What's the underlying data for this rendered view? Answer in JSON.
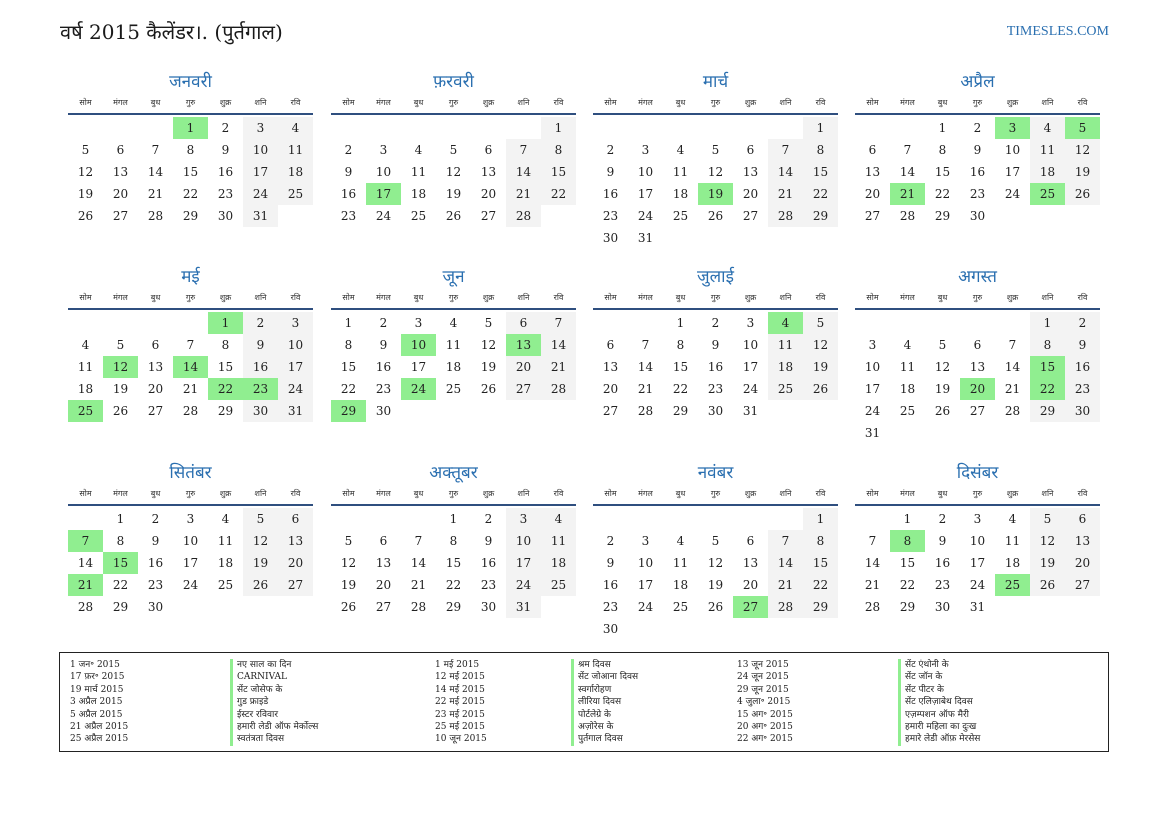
{
  "header": {
    "title": "वर्ष 2015 कैलेंडर।. (पुर्तगाल)",
    "site": "TIMESLES.COM"
  },
  "weekdays": [
    "सोम",
    "मंगल",
    "बुध",
    "गुरु",
    "शुक्र",
    "शनि",
    "रवि"
  ],
  "months": [
    {
      "name": "जनवरी",
      "offset": 3,
      "days": 31,
      "highlights": [
        1
      ]
    },
    {
      "name": "फ़रवरी",
      "offset": 6,
      "days": 28,
      "highlights": [
        17
      ]
    },
    {
      "name": "मार्च",
      "offset": 6,
      "days": 31,
      "highlights": [
        19
      ]
    },
    {
      "name": "अप्रैल",
      "offset": 2,
      "days": 30,
      "highlights": [
        3,
        5,
        21,
        25
      ]
    },
    {
      "name": "मई",
      "offset": 4,
      "days": 31,
      "highlights": [
        1,
        12,
        14,
        22,
        23,
        25
      ]
    },
    {
      "name": "जून",
      "offset": 0,
      "days": 30,
      "highlights": [
        10,
        13,
        24,
        29
      ]
    },
    {
      "name": "जुलाई",
      "offset": 2,
      "days": 31,
      "highlights": [
        4
      ]
    },
    {
      "name": "अगस्त",
      "offset": 5,
      "days": 31,
      "highlights": [
        15,
        20,
        22
      ]
    },
    {
      "name": "सितंबर",
      "offset": 1,
      "days": 30,
      "highlights": [
        7,
        15,
        21
      ]
    },
    {
      "name": "अक्तूबर",
      "offset": 3,
      "days": 31,
      "highlights": []
    },
    {
      "name": "नवंबर",
      "offset": 6,
      "days": 30,
      "highlights": [
        27
      ]
    },
    {
      "name": "दिसंबर",
      "offset": 1,
      "days": 31,
      "highlights": [
        8,
        25
      ]
    }
  ],
  "legend": [
    {
      "date": "1 जन॰ 2015",
      "name": "नए साल का दिन"
    },
    {
      "date": "17 फ़र॰ 2015",
      "name": "CARNIVAL"
    },
    {
      "date": "19 मार्च 2015",
      "name": "सेंट जोसेफ के"
    },
    {
      "date": "3 अप्रैल 2015",
      "name": "गुड फ्राइडे"
    },
    {
      "date": "5 अप्रैल 2015",
      "name": "ईस्टर रविवार"
    },
    {
      "date": "21 अप्रैल 2015",
      "name": "हमारी लेडी ऑफ मेर्कोल्स"
    },
    {
      "date": "25 अप्रैल 2015",
      "name": "स्वतंत्रता दिवस"
    },
    {
      "date": "1 मई 2015",
      "name": "श्रम दिवस"
    },
    {
      "date": "12 मई 2015",
      "name": "सेंट जोआना दिवस"
    },
    {
      "date": "14 मई 2015",
      "name": "स्वर्गारोहण"
    },
    {
      "date": "22 मई 2015",
      "name": "लीरिया दिवस"
    },
    {
      "date": "23 मई 2015",
      "name": "पोर्टलेग्रे के"
    },
    {
      "date": "25 मई 2015",
      "name": "अज़ोरेस के"
    },
    {
      "date": "10 जून 2015",
      "name": "पुर्तगाल दिवस"
    },
    {
      "date": "13 जून 2015",
      "name": "सेंट एंथोनी के"
    },
    {
      "date": "24 जून 2015",
      "name": "सेंट जॉन के"
    },
    {
      "date": "29 जून 2015",
      "name": "सेंट पीटर के"
    },
    {
      "date": "4 जुला॰ 2015",
      "name": "सेंट एलिज़ाबेथ दिवस"
    },
    {
      "date": "15 अग॰ 2015",
      "name": "एज़म्पशन ऑफ मैरी"
    },
    {
      "date": "20 अग॰ 2015",
      "name": "हमारी महिला का दुःख"
    },
    {
      "date": "22 अग॰ 2015",
      "name": "हमारे लेडी ऑफ़ मेरसेस"
    }
  ]
}
